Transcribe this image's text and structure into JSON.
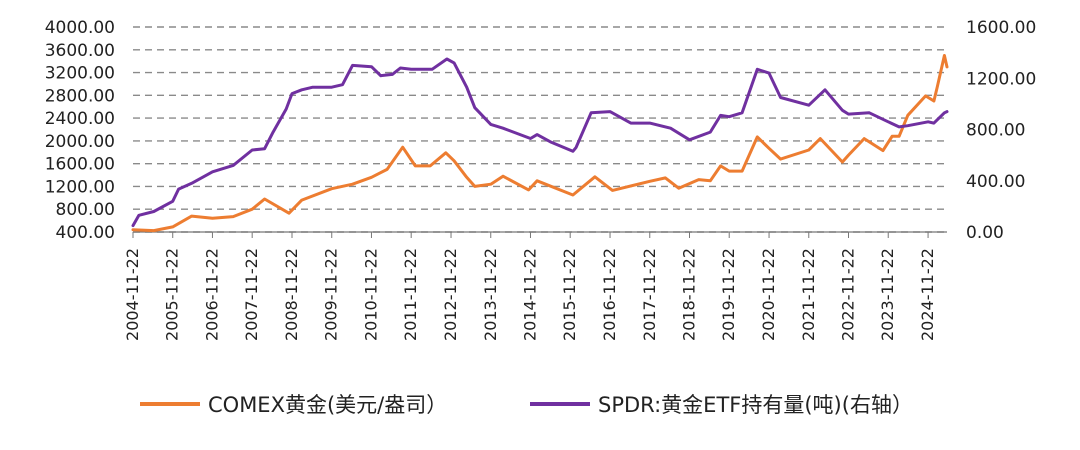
{
  "chart_data": {
    "type": "line",
    "title": "",
    "xlabel": "",
    "ylabel_left": "",
    "ylabel_right": "",
    "x_tick_labels": [
      "2004-11-22",
      "2005-11-22",
      "2006-11-22",
      "2007-11-22",
      "2008-11-22",
      "2009-11-22",
      "2010-11-22",
      "2011-11-22",
      "2012-11-22",
      "2013-11-22",
      "2014-11-22",
      "2015-11-22",
      "2016-11-22",
      "2017-11-22",
      "2018-11-22",
      "2019-11-22",
      "2020-11-22",
      "2021-11-22",
      "2022-11-22",
      "2023-11-22",
      "2024-11-22"
    ],
    "x_range": [
      "2004-11-22",
      "2025-05-15"
    ],
    "y_left": {
      "min": 400,
      "max": 4000,
      "ticks": [
        "400.00",
        "800.00",
        "1200.00",
        "1600.00",
        "2000.00",
        "2400.00",
        "2800.00",
        "3200.00",
        "3600.00",
        "4000.00"
      ]
    },
    "y_right": {
      "min": 0,
      "max": 1600,
      "ticks": [
        "0.00",
        "400.00",
        "800.00",
        "1200.00",
        "1600.00"
      ]
    },
    "grid": true,
    "legend_position": "bottom",
    "series": [
      {
        "name": "COMEX黄金(美元/盎司)",
        "axis": "left",
        "color": "#ED7D31",
        "points": [
          [
            "2004-11-22",
            440
          ],
          [
            "2005-06-01",
            425
          ],
          [
            "2005-11-22",
            490
          ],
          [
            "2006-05-15",
            680
          ],
          [
            "2006-11-22",
            640
          ],
          [
            "2007-06-01",
            670
          ],
          [
            "2007-11-22",
            800
          ],
          [
            "2008-03-15",
            980
          ],
          [
            "2008-10-25",
            730
          ],
          [
            "2009-02-20",
            960
          ],
          [
            "2009-11-22",
            1160
          ],
          [
            "2010-06-01",
            1240
          ],
          [
            "2010-11-22",
            1360
          ],
          [
            "2011-04-15",
            1500
          ],
          [
            "2011-09-05",
            1890
          ],
          [
            "2011-12-30",
            1560
          ],
          [
            "2012-05-15",
            1560
          ],
          [
            "2012-10-05",
            1790
          ],
          [
            "2012-12-20",
            1650
          ],
          [
            "2013-04-15",
            1360
          ],
          [
            "2013-06-28",
            1200
          ],
          [
            "2013-11-22",
            1240
          ],
          [
            "2014-03-15",
            1380
          ],
          [
            "2014-11-05",
            1140
          ],
          [
            "2015-01-22",
            1300
          ],
          [
            "2015-12-17",
            1050
          ],
          [
            "2016-07-06",
            1370
          ],
          [
            "2016-12-15",
            1130
          ],
          [
            "2017-11-22",
            1290
          ],
          [
            "2018-04-15",
            1350
          ],
          [
            "2018-08-15",
            1170
          ],
          [
            "2019-02-15",
            1320
          ],
          [
            "2019-06-01",
            1300
          ],
          [
            "2019-09-04",
            1560
          ],
          [
            "2019-11-22",
            1470
          ],
          [
            "2020-03-19",
            1470
          ],
          [
            "2020-08-06",
            2070
          ],
          [
            "2020-11-22",
            1870
          ],
          [
            "2021-03-08",
            1680
          ],
          [
            "2021-11-22",
            1840
          ],
          [
            "2022-03-08",
            2040
          ],
          [
            "2022-09-27",
            1630
          ],
          [
            "2022-11-22",
            1750
          ],
          [
            "2023-04-15",
            2040
          ],
          [
            "2023-10-05",
            1830
          ],
          [
            "2023-12-28",
            2080
          ],
          [
            "2024-03-01",
            2080
          ],
          [
            "2024-05-20",
            2450
          ],
          [
            "2024-10-30",
            2790
          ],
          [
            "2025-01-15",
            2700
          ],
          [
            "2025-02-15",
            2950
          ],
          [
            "2025-04-21",
            3500
          ],
          [
            "2025-05-15",
            3300
          ]
        ]
      },
      {
        "name": "SPDR:黄金ETF持有量(吨)(右轴）",
        "axis": "right",
        "color": "#7030A0",
        "points": [
          [
            "2004-11-22",
            50
          ],
          [
            "2005-01-15",
            130
          ],
          [
            "2005-06-01",
            160
          ],
          [
            "2005-11-22",
            240
          ],
          [
            "2006-01-15",
            335
          ],
          [
            "2006-05-15",
            380
          ],
          [
            "2006-11-22",
            470
          ],
          [
            "2007-06-01",
            520
          ],
          [
            "2007-11-22",
            640
          ],
          [
            "2008-03-15",
            650
          ],
          [
            "2008-06-01",
            780
          ],
          [
            "2008-09-30",
            960
          ],
          [
            "2008-11-22",
            1080
          ],
          [
            "2009-02-20",
            1110
          ],
          [
            "2009-06-01",
            1130
          ],
          [
            "2009-11-22",
            1130
          ],
          [
            "2010-03-01",
            1150
          ],
          [
            "2010-06-01",
            1300
          ],
          [
            "2010-11-22",
            1290
          ],
          [
            "2011-02-15",
            1220
          ],
          [
            "2011-06-01",
            1230
          ],
          [
            "2011-08-15",
            1280
          ],
          [
            "2011-11-22",
            1270
          ],
          [
            "2012-06-01",
            1270
          ],
          [
            "2012-10-15",
            1350
          ],
          [
            "2012-12-20",
            1320
          ],
          [
            "2013-04-15",
            1130
          ],
          [
            "2013-06-28",
            970
          ],
          [
            "2013-11-22",
            840
          ],
          [
            "2014-03-15",
            810
          ],
          [
            "2014-11-22",
            730
          ],
          [
            "2015-01-22",
            760
          ],
          [
            "2015-06-01",
            700
          ],
          [
            "2015-12-17",
            630
          ],
          [
            "2016-01-15",
            660
          ],
          [
            "2016-06-01",
            930
          ],
          [
            "2016-11-22",
            940
          ],
          [
            "2017-06-01",
            850
          ],
          [
            "2017-11-22",
            850
          ],
          [
            "2018-06-01",
            810
          ],
          [
            "2018-11-22",
            720
          ],
          [
            "2019-06-01",
            780
          ],
          [
            "2019-09-04",
            910
          ],
          [
            "2019-11-22",
            900
          ],
          [
            "2020-03-19",
            930
          ],
          [
            "2020-08-06",
            1270
          ],
          [
            "2020-11-22",
            1240
          ],
          [
            "2021-03-08",
            1050
          ],
          [
            "2021-11-22",
            990
          ],
          [
            "2022-04-20",
            1110
          ],
          [
            "2022-09-27",
            950
          ],
          [
            "2022-11-22",
            920
          ],
          [
            "2023-06-01",
            930
          ],
          [
            "2023-11-22",
            860
          ],
          [
            "2024-03-01",
            820
          ],
          [
            "2024-05-20",
            830
          ],
          [
            "2024-11-22",
            860
          ],
          [
            "2025-01-15",
            850
          ],
          [
            "2025-04-21",
            930
          ],
          [
            "2025-05-15",
            940
          ]
        ]
      }
    ]
  },
  "legend": {
    "gold_label": "COMEX黄金(美元/盎司）",
    "spdr_label": "SPDR:黄金ETF持有量(吨)(右轴）"
  }
}
